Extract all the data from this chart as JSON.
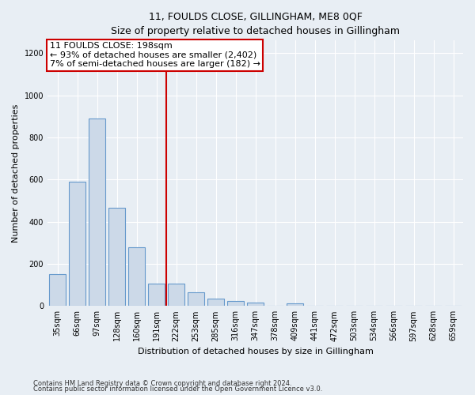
{
  "title": "11, FOULDS CLOSE, GILLINGHAM, ME8 0QF",
  "subtitle": "Size of property relative to detached houses in Gillingham",
  "xlabel": "Distribution of detached houses by size in Gillingham",
  "ylabel": "Number of detached properties",
  "categories": [
    "35sqm",
    "66sqm",
    "97sqm",
    "128sqm",
    "160sqm",
    "191sqm",
    "222sqm",
    "253sqm",
    "285sqm",
    "316sqm",
    "347sqm",
    "378sqm",
    "409sqm",
    "441sqm",
    "472sqm",
    "503sqm",
    "534sqm",
    "566sqm",
    "597sqm",
    "628sqm",
    "659sqm"
  ],
  "values": [
    150,
    590,
    890,
    465,
    280,
    105,
    105,
    65,
    35,
    25,
    18,
    0,
    12,
    0,
    0,
    0,
    0,
    0,
    0,
    0,
    0
  ],
  "bar_color": "#ccd9e8",
  "bar_edge_color": "#6699cc",
  "annotation_line1": "11 FOULDS CLOSE: 198sqm",
  "annotation_line2": "← 93% of detached houses are smaller (2,402)",
  "annotation_line3": "7% of semi-detached houses are larger (182) →",
  "annotation_box_facecolor": "#ffffff",
  "annotation_box_edgecolor": "#cc0000",
  "vline_color": "#cc0000",
  "vline_pos": 5.5,
  "ylim": [
    0,
    1260
  ],
  "yticks": [
    0,
    200,
    400,
    600,
    800,
    1000,
    1200
  ],
  "footnote1": "Contains HM Land Registry data © Crown copyright and database right 2024.",
  "footnote2": "Contains public sector information licensed under the Open Government Licence v3.0.",
  "bg_color": "#e8eef4",
  "plot_bg_color": "#e8eef4",
  "grid_color": "#ffffff",
  "title_fontsize": 9,
  "subtitle_fontsize": 9,
  "ylabel_fontsize": 8,
  "xlabel_fontsize": 8,
  "tick_fontsize": 7,
  "annot_fontsize": 8
}
